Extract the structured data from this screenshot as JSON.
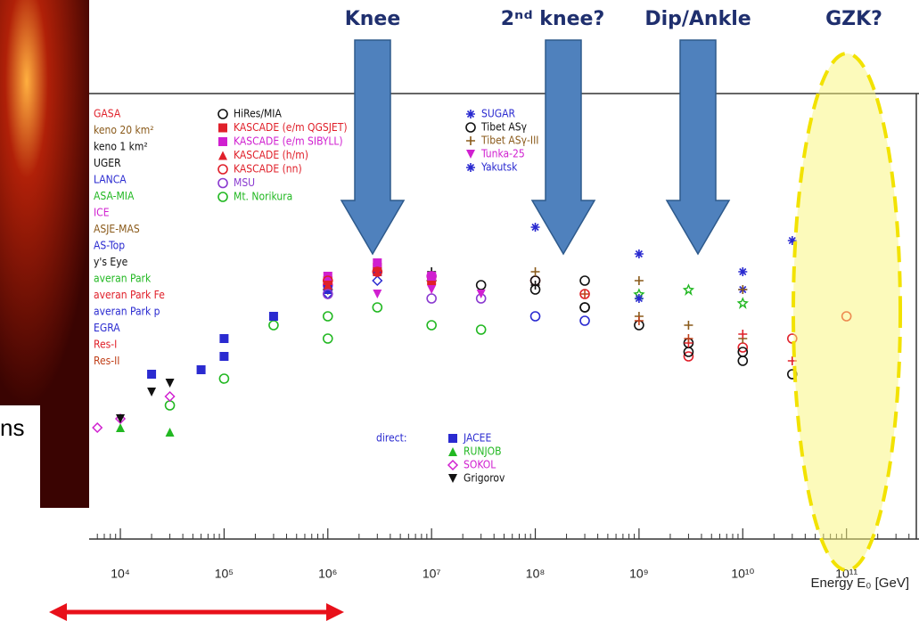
{
  "slide_text": "ns",
  "chart_data": {
    "type": "scatter",
    "xlog": true,
    "annotations": [
      "Knee",
      "2ⁿᵈ knee?",
      "Dip/Ankle",
      "GZK?"
    ],
    "xlabel": "Energy E₀ [GeV]",
    "xlim": [
      5000,
      500000000000
    ],
    "xticks": [
      {
        "value": 10000,
        "label": "10⁴"
      },
      {
        "value": 100000,
        "label": "10⁵"
      },
      {
        "value": 1000000,
        "label": "10⁶"
      },
      {
        "value": 10000000,
        "label": "10⁷"
      },
      {
        "value": 100000000,
        "label": "10⁸"
      },
      {
        "value": 1000000000,
        "label": "10⁹"
      },
      {
        "value": 10000000000,
        "label": "10¹⁰"
      },
      {
        "value": 100000000000,
        "label": "10¹¹"
      }
    ],
    "ylim": [
      0,
      100
    ],
    "legend_header": "direct:",
    "series": [
      {
        "name": "GASA",
        "color": "#e0202a",
        "marker": "circle",
        "x": [
          3000000000.0,
          10000000000.0,
          30000000000.0,
          100000000000.0
        ],
        "values": [
          41,
          43,
          45,
          50
        ]
      },
      {
        "name": "keno 20 km²",
        "color": "#8a5a1a",
        "marker": "plus",
        "x": [
          1000000000.0,
          3000000000.0,
          10000000000.0
        ],
        "values": [
          50,
          48,
          45
        ]
      },
      {
        "name": "keno 1 km²",
        "color": "#111111",
        "marker": "plus",
        "x": [
          10000000.0,
          100000000.0
        ],
        "values": [
          60,
          57
        ]
      },
      {
        "name": "UGER",
        "color": "#111111",
        "marker": "circle",
        "x": [
          3000000000.0,
          10000000000.0,
          30000000000.0
        ],
        "values": [
          42,
          40,
          37
        ]
      },
      {
        "name": "LANCA",
        "color": "#2a2ad0",
        "marker": "square",
        "x": [
          1000000.0,
          3000000.0
        ],
        "values": [
          58,
          60
        ]
      },
      {
        "name": "ASA-MIA",
        "color": "#22b822",
        "marker": "circle",
        "x": [
          300000.0,
          1000000.0,
          3000000.0
        ],
        "values": [
          48,
          50,
          52
        ]
      },
      {
        "name": "ICE",
        "color": "#d020d0",
        "marker": "circle",
        "x": [
          1000000.0,
          10000000.0
        ],
        "values": [
          57,
          59
        ]
      },
      {
        "name": "ASJE-MAS",
        "color": "#8a5a1a",
        "marker": "diamond",
        "x": [
          1000000.0,
          10000000.0
        ],
        "values": [
          56,
          58
        ]
      },
      {
        "name": "AS-Top",
        "color": "#2a2ad0",
        "marker": "diamond",
        "x": [
          1000000.0,
          3000000.0
        ],
        "values": [
          55,
          58
        ]
      },
      {
        "name": "y's Eye",
        "color": "#111111",
        "marker": "circle",
        "x": [
          300000000.0,
          1000000000.0,
          3000000000.0,
          10000000000.0
        ],
        "values": [
          52,
          48,
          44,
          42
        ]
      },
      {
        "name": "averan Park",
        "color": "#22b822",
        "marker": "star",
        "x": [
          1000000000.0,
          3000000000.0,
          10000000000.0
        ],
        "values": [
          55,
          56,
          53
        ]
      },
      {
        "name": "averan Park Fe",
        "color": "#e0202a",
        "marker": "circle",
        "x": [
          100000000.0,
          300000000.0
        ],
        "values": [
          58,
          55
        ]
      },
      {
        "name": "averan Park p",
        "color": "#2a2ad0",
        "marker": "circle",
        "x": [
          100000000.0,
          300000000.0
        ],
        "values": [
          50,
          49
        ]
      },
      {
        "name": "EGRA",
        "color": "#2a2ad0",
        "marker": "square",
        "x": [
          100000.0,
          300000.0,
          1000000.0
        ],
        "values": [
          45,
          50,
          56
        ]
      },
      {
        "name": "Res-I",
        "color": "#e0202a",
        "marker": "plus",
        "x": [
          3000000000.0,
          10000000000.0,
          30000000000.0
        ],
        "values": [
          44,
          46,
          40
        ]
      },
      {
        "name": "Res-II",
        "color": "#c0401a",
        "marker": "plus",
        "x": [
          300000000.0,
          1000000000.0,
          3000000000.0
        ],
        "values": [
          55,
          49,
          45
        ]
      },
      {
        "name": "HiRes/MIA",
        "color": "#111111",
        "marker": "circle",
        "x": [
          100000000.0,
          300000000.0
        ],
        "values": [
          56,
          52
        ]
      },
      {
        "name": "KASCADE (e/m QGSJET)",
        "color": "#e0202a",
        "marker": "square",
        "x": [
          1000000.0,
          3000000.0,
          10000000.0
        ],
        "values": [
          58,
          61,
          58
        ]
      },
      {
        "name": "KASCADE (e/m SIBYLL)",
        "color": "#d020d0",
        "marker": "square",
        "x": [
          1000000.0,
          3000000.0,
          10000000.0
        ],
        "values": [
          59,
          62,
          59
        ]
      },
      {
        "name": "KASCADE (h/m)",
        "color": "#e0202a",
        "marker": "triangle",
        "x": [
          1000000.0,
          3000000.0
        ],
        "values": [
          57,
          60
        ]
      },
      {
        "name": "KASCADE (nn)",
        "color": "#e0202a",
        "marker": "circle",
        "x": [
          1000000.0,
          3000000.0
        ],
        "values": [
          58,
          60
        ]
      },
      {
        "name": "MSU",
        "color": "#8a3ad0",
        "marker": "circle",
        "x": [
          1000000.0,
          10000000.0,
          30000000.0
        ],
        "values": [
          55,
          54,
          54
        ]
      },
      {
        "name": "Mt. Norikura",
        "color": "#22b822",
        "marker": "circle",
        "x": [
          30000.0,
          100000.0,
          1000000.0,
          10000000.0,
          30000000.0
        ],
        "values": [
          30,
          36,
          45,
          48,
          47
        ]
      },
      {
        "name": "SUGAR",
        "color": "#2a2ad0",
        "marker": "asterisk",
        "x": [
          1000000000.0,
          10000000000.0
        ],
        "values": [
          54,
          56
        ]
      },
      {
        "name": "Tibet ASγ",
        "color": "#111111",
        "marker": "circle",
        "x": [
          30000000.0,
          100000000.0,
          300000000.0
        ],
        "values": [
          57,
          58,
          58
        ]
      },
      {
        "name": "Tibet ASγ-III",
        "color": "#8a5a1a",
        "marker": "plus",
        "x": [
          100000000.0,
          1000000000.0,
          10000000000.0
        ],
        "values": [
          60,
          58,
          56
        ]
      },
      {
        "name": "Tunka-25",
        "color": "#d020d0",
        "marker": "tridown",
        "x": [
          3000000.0,
          10000000.0,
          30000000.0
        ],
        "values": [
          55,
          56,
          55
        ]
      },
      {
        "name": "Yakutsk",
        "color": "#2a2ad0",
        "marker": "asterisk",
        "x": [
          100000000.0,
          1000000000.0,
          10000000000.0,
          30000000000.0
        ],
        "values": [
          70,
          64,
          60,
          67
        ]
      },
      {
        "name": "JACEE",
        "color": "#2a2ad0",
        "marker": "square",
        "x": [
          20000.0,
          60000.0,
          100000.0
        ],
        "values": [
          37,
          38,
          41
        ]
      },
      {
        "name": "RUNJOB",
        "color": "#22b822",
        "marker": "triangle",
        "x": [
          10000.0,
          30000.0
        ],
        "values": [
          25,
          24
        ]
      },
      {
        "name": "SOKOL",
        "color": "#d020d0",
        "marker": "diamond",
        "x": [
          6000.0,
          10000.0,
          30000.0
        ],
        "values": [
          25,
          27,
          32
        ]
      },
      {
        "name": "Grigorov",
        "color": "#111111",
        "marker": "tridown",
        "x": [
          10000.0,
          20000.0,
          30000.0
        ],
        "values": [
          27,
          33,
          35
        ]
      }
    ]
  }
}
